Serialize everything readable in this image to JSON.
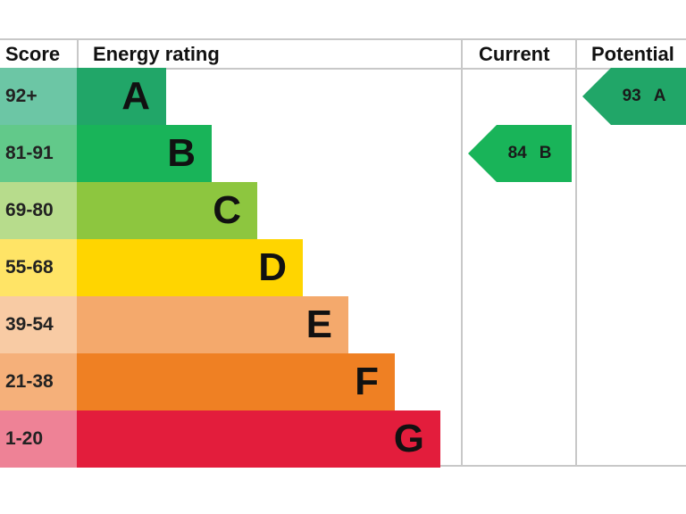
{
  "headers": {
    "score": "Score",
    "energy_rating": "Energy rating",
    "current": "Current",
    "potential": "Potential"
  },
  "colors": {
    "A": "#21a668",
    "B": "#19b459",
    "C": "#8dc63f",
    "D": "#ffd500",
    "E": "#f4a96c",
    "F": "#ef8023",
    "G": "#e31d3c",
    "score_A": "#6cc6a5",
    "score_B": "#62c98a",
    "score_C": "#b7dc8c",
    "score_D": "#ffe466",
    "score_E": "#f8cba4",
    "score_F": "#f5b07a",
    "score_G": "#ee8296"
  },
  "chart_data": {
    "type": "bar",
    "categories": [
      "A",
      "B",
      "C",
      "D",
      "E",
      "F",
      "G"
    ],
    "score_ranges": [
      "92+",
      "81-91",
      "69-80",
      "55-68",
      "39-54",
      "21-38",
      "1-20"
    ],
    "current": {
      "value": "84",
      "band": "B"
    },
    "potential": {
      "value": "93",
      "band": "A"
    }
  }
}
